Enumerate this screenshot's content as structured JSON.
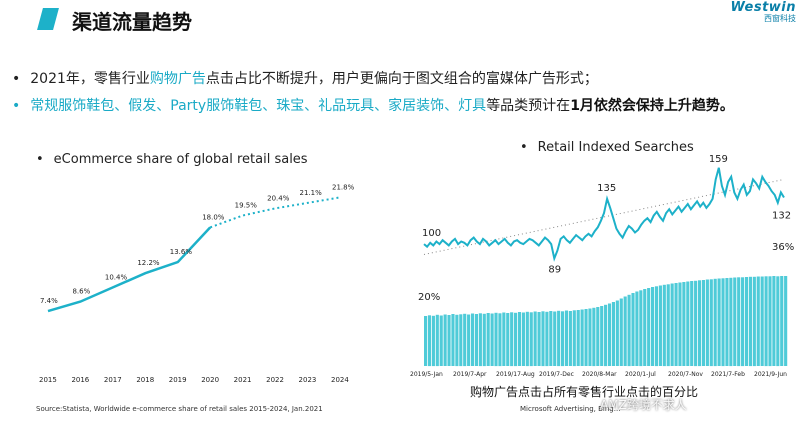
{
  "header": {
    "title": "渠道流量趋势",
    "logo_text": "Westwin",
    "logo_sub": "西窗科技"
  },
  "bullets": {
    "b1_prefix": "2021年，零售行业",
    "b1_highlight": "购物广告",
    "b1_suffix": "点击占比不断提升，用户更偏向于图文组合的富媒体广告形式；",
    "b2_highlight": "常规服饰鞋包、假发、Party服饰鞋包、珠宝、礼品玩具、家居装饰、灯具",
    "b2_mid": "等品类预计在",
    "b2_strong": "1月依然会保持上升趋势。"
  },
  "colors": {
    "accent": "#1db1c9",
    "bar": "#4fcbd8",
    "text": "#222222"
  },
  "left_chart": {
    "title": "eCommerce share of global retail sales",
    "source": "Source:Statista, Worldwide e-commerce share of retail sales 2015-2024, Jan.2021"
  },
  "right_chart": {
    "title": "Retail Indexed Searches",
    "caption": "购物广告点击占所有零售行业点击的百分比",
    "source": "Microsoft Advertising, Bing..."
  },
  "watermark": "AMZ跨境不求人",
  "chart_data": [
    {
      "type": "line",
      "title": "eCommerce share of global retail sales",
      "x": [
        "2015",
        "2016",
        "2017",
        "2018",
        "2019",
        "2020",
        "2021",
        "2022",
        "2023",
        "2024"
      ],
      "values": [
        7.4,
        8.6,
        10.4,
        12.2,
        13.6,
        18.0,
        19.5,
        20.4,
        21.1,
        21.8
      ],
      "labels": [
        "7.4%",
        "8.6%",
        "10.4%",
        "12.2%",
        "13.6%",
        "18.0%",
        "19.5%",
        "20.4%",
        "21.1%",
        "21.8%"
      ],
      "solid_until_index": 5,
      "forecast_style": "dotted",
      "ylim": [
        0,
        24
      ]
    },
    {
      "type": "line",
      "title": "Retail Indexed Searches",
      "x_ticks": [
        "2019/5-Jan",
        "2019/7-Apr",
        "2019/17-Aug",
        "2019/7-Dec",
        "2020/8-Mar",
        "2020/1-Jul",
        "2020/7-Nov",
        "2021/7-Feb",
        "2021/9-Jun"
      ],
      "annotations": [
        {
          "label": "100",
          "value": 100
        },
        {
          "label": "89",
          "value": 89
        },
        {
          "label": "135",
          "value": 135
        },
        {
          "label": "159",
          "value": 159
        },
        {
          "label": "132",
          "value": 132
        }
      ],
      "trendline": "dotted",
      "index_values": [
        100,
        98,
        101,
        99,
        102,
        100,
        103,
        101,
        99,
        102,
        104,
        100,
        102,
        101,
        99,
        103,
        105,
        102,
        100,
        104,
        102,
        99,
        101,
        103,
        100,
        102,
        104,
        101,
        99,
        102,
        103,
        101,
        100,
        102,
        104,
        103,
        101,
        99,
        102,
        105,
        103,
        100,
        89,
        95,
        104,
        106,
        103,
        101,
        104,
        107,
        105,
        103,
        106,
        108,
        106,
        110,
        113,
        118,
        124,
        135,
        128,
        120,
        112,
        108,
        105,
        110,
        114,
        112,
        109,
        111,
        115,
        118,
        120,
        117,
        122,
        125,
        121,
        118,
        124,
        127,
        123,
        126,
        129,
        125,
        128,
        131,
        127,
        130,
        133,
        129,
        132,
        128,
        131,
        135,
        150,
        159,
        145,
        138,
        148,
        152,
        140,
        135,
        142,
        146,
        138,
        141,
        150,
        147,
        143,
        152,
        148,
        145,
        141,
        138,
        132,
        140,
        136
      ]
    },
    {
      "type": "bar",
      "title": "购物广告点击占所有零售行业点击的百分比",
      "annotations": [
        {
          "label": "20%",
          "value": 20
        },
        {
          "label": "36%",
          "value": 36
        }
      ],
      "values": [
        20,
        20.3,
        20.1,
        20.5,
        20.2,
        20.6,
        20.4,
        20.8,
        20.5,
        20.7,
        20.9,
        20.6,
        21.0,
        20.8,
        21.1,
        20.9,
        21.2,
        21.0,
        21.3,
        21.1,
        21.4,
        21.2,
        21.5,
        21.3,
        21.6,
        21.4,
        21.7,
        21.5,
        21.8,
        21.6,
        21.9,
        21.7,
        22.0,
        21.8,
        22.1,
        21.9,
        22.2,
        22.0,
        22.3,
        22.4,
        22.6,
        22.8,
        23.0,
        23.3,
        23.6,
        24.0,
        24.5,
        25.0,
        25.6,
        26.2,
        27.0,
        27.8,
        28.5,
        29.2,
        29.8,
        30.3,
        30.8,
        31.2,
        31.6,
        31.9,
        32.2,
        32.5,
        32.7,
        33.0,
        33.2,
        33.4,
        33.6,
        33.8,
        34.0,
        34.1,
        34.3,
        34.4,
        34.6,
        34.7,
        34.9,
        35.0,
        35.1,
        35.2,
        35.3,
        35.4,
        35.5,
        35.5,
        35.6,
        35.7,
        35.7,
        35.8,
        35.8,
        35.9,
        35.9,
        36.0,
        35.9,
        36.0,
        36.0
      ]
    }
  ]
}
